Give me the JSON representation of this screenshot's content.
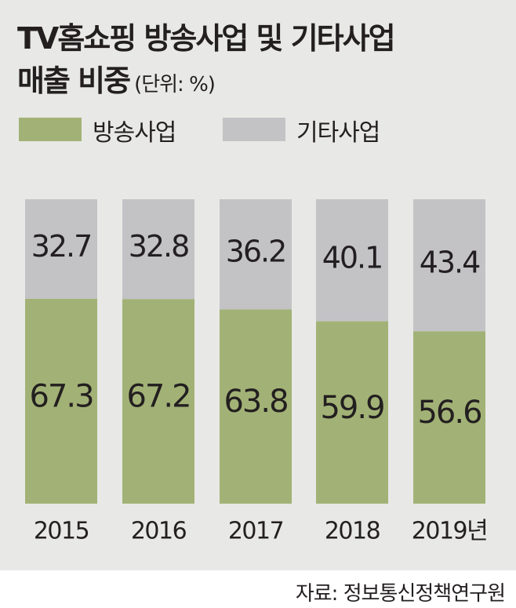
{
  "title_line1": "TV홈쇼핑 방송사업 및 기타사업",
  "title_line2": "매출 비중",
  "unit": "(단위: %)",
  "source": "자료: 정보통신정책연구원",
  "colors": {
    "broadcast": "#a2b276",
    "other": "#c3c3c6",
    "background": "#e8e8e6",
    "text": "#231f20"
  },
  "chart_data": {
    "type": "bar",
    "stacked": true,
    "percent": true,
    "categories": [
      "2015",
      "2016",
      "2017",
      "2018",
      "2019년"
    ],
    "series": [
      {
        "name": "방송사업",
        "values": [
          67.3,
          67.2,
          63.8,
          59.9,
          56.6
        ],
        "color": "#a2b276"
      },
      {
        "name": "기타사업",
        "values": [
          32.7,
          32.8,
          36.2,
          40.1,
          43.4
        ],
        "color": "#c3c3c6"
      }
    ],
    "ylim": [
      0,
      100
    ],
    "grid": false,
    "legend": "top-left",
    "data_labels": true
  }
}
